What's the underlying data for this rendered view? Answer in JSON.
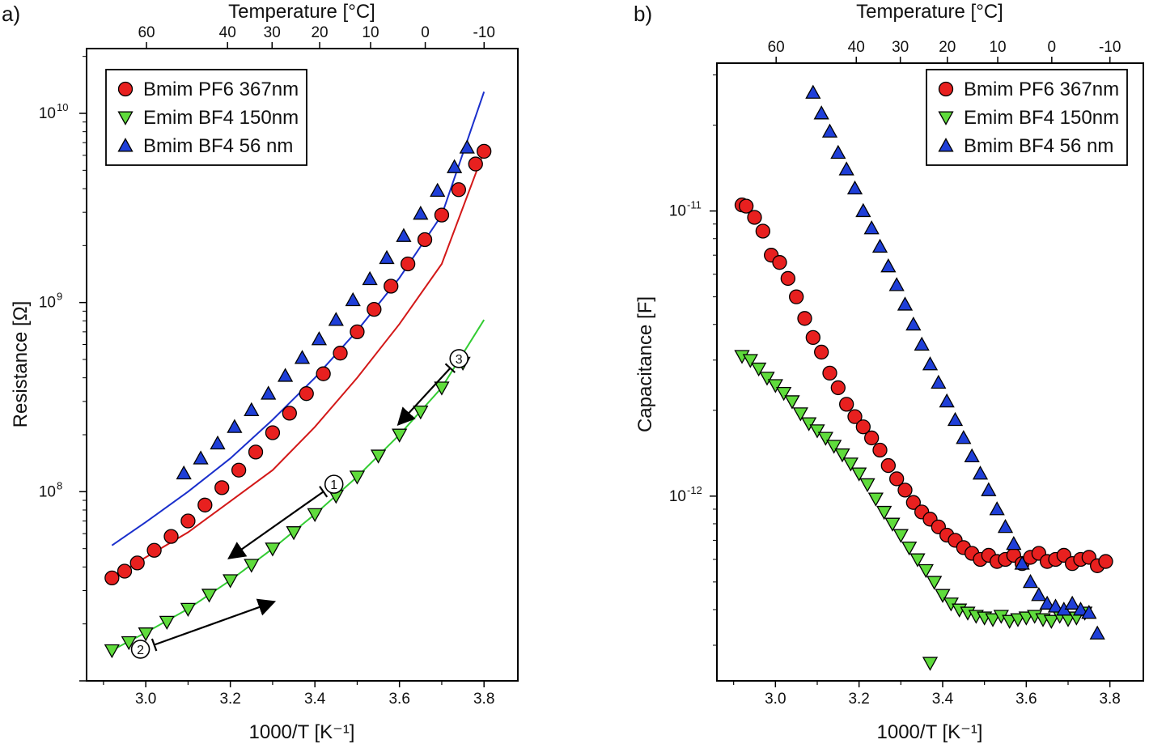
{
  "figure": {
    "panel_a_label": "a)",
    "panel_b_label": "b)"
  },
  "colors": {
    "bmim_pf6": "#e8201f",
    "emim_bf4": "#5fdc3c",
    "bmim_bf4": "#1f3fd8",
    "fit_pf6": "#d31818",
    "fit_emim": "#33cc33",
    "fit_bf4": "#1a2fcc",
    "arrow": "#000000"
  },
  "chart_data": [
    {
      "type": "scatter",
      "panel": "a",
      "title": "",
      "xlabel": "1000/T [K⁻¹]",
      "ylabel": "Resistance [Ω]",
      "top_xlabel": "Temperature [°C]",
      "yscale": "log",
      "xlim": [
        2.86,
        3.88
      ],
      "ylim": [
        10000000.0,
        22000000000.0
      ],
      "x_ticks": [
        3.0,
        3.2,
        3.4,
        3.6,
        3.8
      ],
      "x_tick_labels": [
        "3.0",
        "3.2",
        "3.4",
        "3.6",
        "3.8"
      ],
      "y_ticks": [
        {
          "base": "10",
          "exp": "8",
          "value": 100000000.0
        },
        {
          "base": "10",
          "exp": "9",
          "value": 1000000000.0
        },
        {
          "base": "10",
          "exp": "10",
          "value": 10000000000.0
        }
      ],
      "top_ticks": [
        60,
        40,
        30,
        20,
        10,
        0,
        -10
      ],
      "top_tick_labels": [
        "60",
        "40",
        "30",
        "20",
        "10",
        "0",
        "-10"
      ],
      "legend_position": "top-left",
      "series": [
        {
          "name": "Bmim PF6 367nm",
          "marker": "circle",
          "color_key": "bmim_pf6",
          "x": [
            2.92,
            2.95,
            2.98,
            3.02,
            3.06,
            3.1,
            3.14,
            3.18,
            3.22,
            3.26,
            3.3,
            3.34,
            3.38,
            3.42,
            3.46,
            3.5,
            3.54,
            3.58,
            3.62,
            3.66,
            3.7,
            3.74,
            3.78,
            3.8
          ],
          "y": [
            35000000.0,
            38000000.0,
            42000000.0,
            49000000.0,
            58000000.0,
            70000000.0,
            85000000.0,
            105000000.0,
            130000000.0,
            162000000.0,
            205000000.0,
            260000000.0,
            330000000.0,
            420000000.0,
            540000000.0,
            700000000.0,
            920000000.0,
            1220000000.0,
            1600000000.0,
            2150000000.0,
            2900000000.0,
            3950000000.0,
            5400000000.0,
            6300000000.0
          ]
        },
        {
          "name": "Emim BF4 150nm",
          "marker": "triangle-down",
          "color_key": "emim_bf4",
          "x": [
            2.92,
            2.96,
            3.0,
            3.05,
            3.1,
            3.15,
            3.2,
            3.25,
            3.3,
            3.35,
            3.4,
            3.45,
            3.5,
            3.55,
            3.6,
            3.65,
            3.7,
            3.75
          ],
          "y": [
            14500000.0,
            16000000.0,
            17800000.0,
            20500000.0,
            24000000.0,
            28500000.0,
            34000000.0,
            41000000.0,
            50000000.0,
            61000000.0,
            76000000.0,
            95000000.0,
            120000000.0,
            155000000.0,
            200000000.0,
            265000000.0,
            355000000.0,
            480000000.0
          ]
        },
        {
          "name": "Bmim BF4 56 nm",
          "marker": "triangle-up",
          "color_key": "bmim_bf4",
          "x": [
            3.09,
            3.13,
            3.17,
            3.21,
            3.25,
            3.29,
            3.33,
            3.37,
            3.41,
            3.45,
            3.49,
            3.53,
            3.57,
            3.61,
            3.65,
            3.69,
            3.73,
            3.76
          ],
          "y": [
            125000000.0,
            150000000.0,
            180000000.0,
            220000000.0,
            270000000.0,
            330000000.0,
            410000000.0,
            510000000.0,
            640000000.0,
            810000000.0,
            1030000000.0,
            1330000000.0,
            1720000000.0,
            2250000000.0,
            2950000000.0,
            3900000000.0,
            5200000000.0,
            6600000000.0
          ]
        }
      ],
      "fits": [
        {
          "series": "Bmim BF4 56 nm",
          "color_key": "fit_bf4",
          "x": [
            2.92,
            3.0,
            3.1,
            3.2,
            3.3,
            3.4,
            3.5,
            3.6,
            3.7,
            3.8
          ],
          "y": [
            52000000.0,
            69000000.0,
            100000000.0,
            150000000.0,
            240000000.0,
            400000000.0,
            710000000.0,
            1350000000.0,
            2900000000.0,
            13000000000.0
          ]
        },
        {
          "series": "Bmim PF6 367nm",
          "color_key": "fit_pf6",
          "x": [
            2.92,
            3.0,
            3.1,
            3.2,
            3.3,
            3.4,
            3.5,
            3.6,
            3.7,
            3.8
          ],
          "y": [
            35000000.0,
            45000000.0,
            61000000.0,
            89000000.0,
            130000000.0,
            220000000.0,
            400000000.0,
            770000000.0,
            1600000000.0,
            6300000000.0
          ]
        },
        {
          "series": "Emim BF4 150nm",
          "color_key": "fit_emim",
          "x": [
            2.92,
            3.0,
            3.1,
            3.2,
            3.3,
            3.4,
            3.5,
            3.6,
            3.7,
            3.8
          ],
          "y": [
            14500000.0,
            18000000.0,
            24000000.0,
            34000000.0,
            50000000.0,
            76000000.0,
            120000000.0,
            200000000.0,
            355000000.0,
            810000000.0
          ]
        }
      ],
      "annotations": [
        {
          "label": "1",
          "from": [
            3.42,
            100000000.0
          ],
          "to": [
            3.2,
            45000000.0
          ]
        },
        {
          "label": "2",
          "from": [
            3.02,
            15500000.0
          ],
          "to": [
            3.3,
            26000000.0
          ]
        },
        {
          "label": "3",
          "from": [
            3.72,
            450000000.0
          ],
          "to": [
            3.6,
            230000000.0
          ]
        }
      ]
    },
    {
      "type": "scatter",
      "panel": "b",
      "title": "",
      "xlabel": "1000/T [K⁻¹]",
      "ylabel": "Capacitance [F]",
      "top_xlabel": "Temperature [°C]",
      "yscale": "log",
      "xlim": [
        2.86,
        3.88
      ],
      "ylim": [
        2.25e-13,
        3.3e-11
      ],
      "x_ticks": [
        3.0,
        3.2,
        3.4,
        3.6,
        3.8
      ],
      "x_tick_labels": [
        "3.0",
        "3.2",
        "3.4",
        "3.6",
        "3.8"
      ],
      "y_ticks": [
        {
          "base": "10",
          "exp": "-12",
          "value": 1e-12
        },
        {
          "base": "10",
          "exp": "-11",
          "value": 1e-11
        }
      ],
      "top_ticks": [
        60,
        40,
        30,
        20,
        10,
        0,
        -10
      ],
      "top_tick_labels": [
        "60",
        "40",
        "30",
        "20",
        "10",
        "0",
        "-10"
      ],
      "legend_position": "top-right",
      "series": [
        {
          "name": "Bmim PF6 367nm",
          "marker": "circle",
          "color_key": "bmim_pf6",
          "x": [
            2.92,
            2.93,
            2.95,
            2.97,
            2.99,
            3.01,
            3.03,
            3.05,
            3.07,
            3.09,
            3.11,
            3.13,
            3.15,
            3.17,
            3.19,
            3.21,
            3.23,
            3.25,
            3.27,
            3.29,
            3.31,
            3.33,
            3.35,
            3.37,
            3.39,
            3.41,
            3.43,
            3.45,
            3.47,
            3.49,
            3.51,
            3.53,
            3.55,
            3.57,
            3.59,
            3.61,
            3.63,
            3.65,
            3.67,
            3.69,
            3.71,
            3.73,
            3.75,
            3.77,
            3.79
          ],
          "y": [
            1.05e-11,
            1.04e-11,
            9.5e-12,
            8.5e-12,
            7e-12,
            6.6e-12,
            5.8e-12,
            5e-12,
            4.2e-12,
            3.6e-12,
            3.2e-12,
            2.7e-12,
            2.4e-12,
            2.1e-12,
            1.9e-12,
            1.75e-12,
            1.6e-12,
            1.45e-12,
            1.28e-12,
            1.15e-12,
            1.05e-12,
            9.5e-13,
            8.8e-13,
            8.3e-13,
            7.8e-13,
            7.3e-13,
            7e-13,
            6.6e-13,
            6.3e-13,
            6e-13,
            6.2e-13,
            5.9e-13,
            6e-13,
            6.2e-13,
            5.8e-13,
            6.1e-13,
            6.3e-13,
            5.9e-13,
            6e-13,
            6.2e-13,
            5.8e-13,
            6e-13,
            6.1e-13,
            5.7e-13,
            5.9e-13
          ]
        },
        {
          "name": "Emim BF4 150nm",
          "marker": "triangle-down",
          "color_key": "emim_bf4",
          "x": [
            2.92,
            2.94,
            2.96,
            2.98,
            3.0,
            3.02,
            3.04,
            3.06,
            3.08,
            3.1,
            3.12,
            3.14,
            3.16,
            3.18,
            3.2,
            3.22,
            3.24,
            3.26,
            3.28,
            3.3,
            3.32,
            3.34,
            3.36,
            3.38,
            3.4,
            3.42,
            3.44,
            3.46,
            3.48,
            3.5,
            3.52,
            3.54,
            3.56,
            3.58,
            3.6,
            3.62,
            3.64,
            3.66,
            3.68,
            3.7,
            3.72,
            3.74,
            3.37
          ],
          "y": [
            3.1e-12,
            3e-12,
            2.8e-12,
            2.6e-12,
            2.45e-12,
            2.3e-12,
            2.15e-12,
            1.95e-12,
            1.8e-12,
            1.7e-12,
            1.6e-12,
            1.5e-12,
            1.4e-12,
            1.3e-12,
            1.2e-12,
            1.1e-12,
            9.8e-13,
            8.8e-13,
            8e-13,
            7.3e-13,
            6.6e-13,
            6e-13,
            5.5e-13,
            5e-13,
            4.5e-13,
            4.2e-13,
            4e-13,
            3.9e-13,
            3.8e-13,
            3.75e-13,
            3.7e-13,
            3.8e-13,
            3.65e-13,
            3.7e-13,
            3.75e-13,
            3.8e-13,
            3.7e-13,
            3.65e-13,
            3.8e-13,
            3.7e-13,
            3.75e-13,
            3.9e-13,
            2.6e-13
          ]
        },
        {
          "name": "Bmim BF4 56 nm",
          "marker": "triangle-up",
          "color_key": "bmim_bf4",
          "x": [
            3.09,
            3.11,
            3.13,
            3.15,
            3.17,
            3.19,
            3.21,
            3.23,
            3.25,
            3.27,
            3.29,
            3.31,
            3.33,
            3.35,
            3.37,
            3.39,
            3.41,
            3.43,
            3.45,
            3.47,
            3.49,
            3.51,
            3.53,
            3.55,
            3.57,
            3.59,
            3.61,
            3.63,
            3.65,
            3.67,
            3.69,
            3.71,
            3.73,
            3.75,
            3.77
          ],
          "y": [
            2.6e-11,
            2.2e-11,
            1.9e-11,
            1.6e-11,
            1.4e-11,
            1.2e-11,
            1e-11,
            8.7e-12,
            7.5e-12,
            6.4e-12,
            5.5e-12,
            4.7e-12,
            4e-12,
            3.4e-12,
            2.9e-12,
            2.5e-12,
            2.15e-12,
            1.85e-12,
            1.6e-12,
            1.38e-12,
            1.2e-12,
            1.05e-12,
            9e-13,
            7.8e-13,
            6.8e-13,
            5.8e-13,
            5e-13,
            4.5e-13,
            4.2e-13,
            4.1e-13,
            4e-13,
            4.2e-13,
            4e-13,
            3.9e-13,
            3.3e-13
          ]
        }
      ]
    }
  ]
}
